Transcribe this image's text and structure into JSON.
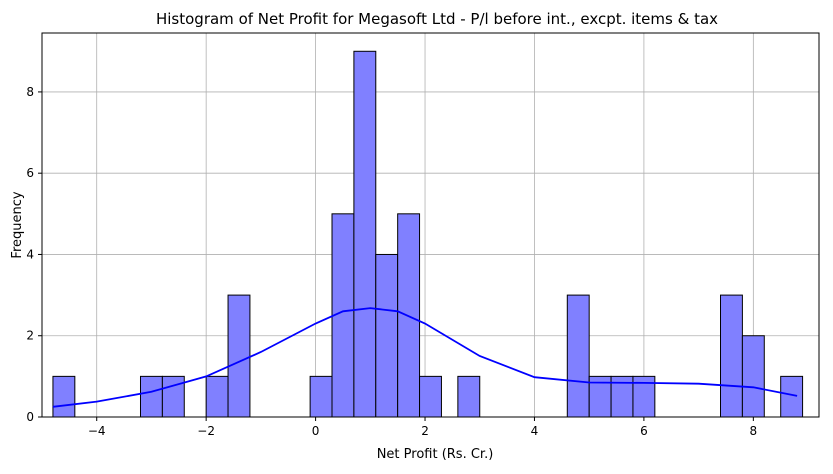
{
  "chart_data": {
    "type": "bar",
    "title": "Histogram of Net Profit for Megasoft Ltd - P/l before int., excpt. items & tax",
    "xlabel": "Net Profit (Rs. Cr.)",
    "ylabel": "Frequency",
    "xlim": [
      -5.0,
      9.2
    ],
    "ylim": [
      0,
      9.45
    ],
    "xticks": [
      -4,
      -2,
      0,
      2,
      4,
      6,
      8
    ],
    "yticks": [
      0,
      2,
      4,
      6,
      8
    ],
    "grid": true,
    "bar_color": "#8080ff",
    "bar_edge_color": "#000000",
    "kde_color": "#0000ff",
    "bins": [
      {
        "x0": -4.8,
        "x1": -4.4,
        "count": 1
      },
      {
        "x0": -3.2,
        "x1": -2.8,
        "count": 1
      },
      {
        "x0": -2.8,
        "x1": -2.4,
        "count": 1
      },
      {
        "x0": -2.0,
        "x1": -1.6,
        "count": 1
      },
      {
        "x0": -1.6,
        "x1": -1.2,
        "count": 3
      },
      {
        "x0": -0.1,
        "x1": 0.3,
        "count": 1
      },
      {
        "x0": 0.3,
        "x1": 0.7,
        "count": 5
      },
      {
        "x0": 0.7,
        "x1": 1.1,
        "count": 9
      },
      {
        "x0": 1.1,
        "x1": 1.5,
        "count": 4
      },
      {
        "x0": 1.5,
        "x1": 1.9,
        "count": 5
      },
      {
        "x0": 1.9,
        "x1": 2.3,
        "count": 1
      },
      {
        "x0": 2.6,
        "x1": 3.0,
        "count": 1
      },
      {
        "x0": 4.6,
        "x1": 5.0,
        "count": 3
      },
      {
        "x0": 5.0,
        "x1": 5.4,
        "count": 1
      },
      {
        "x0": 5.4,
        "x1": 5.8,
        "count": 1
      },
      {
        "x0": 5.8,
        "x1": 6.2,
        "count": 1
      },
      {
        "x0": 7.4,
        "x1": 7.8,
        "count": 3
      },
      {
        "x0": 7.8,
        "x1": 8.2,
        "count": 2
      },
      {
        "x0": 8.5,
        "x1": 8.9,
        "count": 1
      }
    ],
    "kde": {
      "x": [
        -4.8,
        -4.0,
        -3.0,
        -2.0,
        -1.0,
        0.0,
        0.5,
        1.0,
        1.5,
        2.0,
        3.0,
        4.0,
        5.0,
        6.0,
        7.0,
        8.0,
        8.8
      ],
      "y": [
        0.25,
        0.38,
        0.62,
        1.0,
        1.6,
        2.3,
        2.6,
        2.68,
        2.6,
        2.3,
        1.5,
        0.98,
        0.85,
        0.84,
        0.82,
        0.73,
        0.52
      ]
    }
  }
}
